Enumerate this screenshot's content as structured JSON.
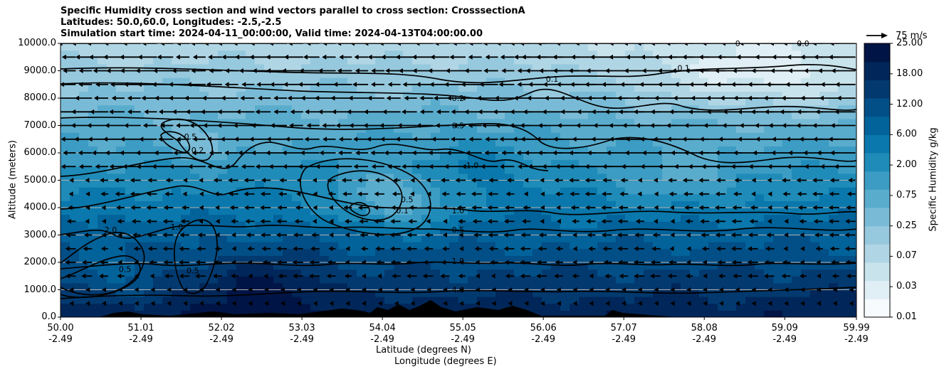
{
  "chart_data": {
    "type": "heatmap",
    "title_lines": [
      "Specific Humidity cross section and wind vectors parallel to cross section: CrosssectionA",
      "Latitudes: 50.0,60.0, Longitudes: -2.5,-2.5",
      "Simulation start time: 2024-04-11_00:00:00, Valid time: 2024-04-13T04:00:00.00"
    ],
    "ylabel": "Altitude (meters)",
    "xlabel_lines": [
      "Latitude (degrees N)",
      "Longitude (degrees E)"
    ],
    "y_ticks": [
      "0.0",
      "1000.0",
      "2000.0",
      "3000.0",
      "4000.0",
      "5000.0",
      "6000.0",
      "7000.0",
      "8000.0",
      "9000.0",
      "10000.0"
    ],
    "ylim": [
      0,
      10000
    ],
    "x_ticks": [
      {
        "lat": "50.00",
        "lon": "-2.49"
      },
      {
        "lat": "51.01",
        "lon": "-2.49"
      },
      {
        "lat": "52.02",
        "lon": "-2.49"
      },
      {
        "lat": "53.03",
        "lon": "-2.49"
      },
      {
        "lat": "54.04",
        "lon": "-2.49"
      },
      {
        "lat": "55.05",
        "lon": "-2.49"
      },
      {
        "lat": "56.06",
        "lon": "-2.49"
      },
      {
        "lat": "57.07",
        "lon": "-2.49"
      },
      {
        "lat": "58.08",
        "lon": "-2.49"
      },
      {
        "lat": "59.09",
        "lon": "-2.49"
      },
      {
        "lat": "59.99",
        "lon": "-2.49"
      }
    ],
    "xlim": [
      50.0,
      59.99
    ],
    "grid": "horizontal",
    "colorbar": {
      "label": "Specific Humidity g/kg",
      "ticks": [
        "0.01",
        "0.03",
        "0.07",
        "0.25",
        "0.75",
        "2.00",
        "6.00",
        "12.00",
        "18.00",
        "25.00"
      ],
      "colormap": [
        "#f7fbfd",
        "#e0eff5",
        "#c9e3ec",
        "#b0d6e5",
        "#96c9de",
        "#79bbd6",
        "#5aaccd",
        "#3c9cc3",
        "#1f8bb8",
        "#0a78ac",
        "#02629a",
        "#024e86",
        "#023a70",
        "#012659",
        "#011446"
      ]
    },
    "quiver_key": "75 m/s",
    "contour_labels": [
      {
        "text": "0.2",
        "lat": 54.99,
        "alt": 8000
      },
      {
        "text": "0.5",
        "lat": 54.99,
        "alt": 7000
      },
      {
        "text": "1.0",
        "lat": 55.17,
        "alt": 5550
      },
      {
        "text": "0.1",
        "lat": 56.17,
        "alt": 8700
      },
      {
        "text": "0.1",
        "lat": 57.82,
        "alt": 9100
      },
      {
        "text": "0.0",
        "lat": 59.32,
        "alt": 10000
      },
      {
        "text": "0",
        "lat": 58.5,
        "alt": 10000
      },
      {
        "text": "0.5",
        "lat": 51.63,
        "alt": 6600
      },
      {
        "text": "0.2",
        "lat": 51.72,
        "alt": 6100
      },
      {
        "text": "0.1",
        "lat": 54.29,
        "alt": 3900
      },
      {
        "text": "0.5",
        "lat": 54.35,
        "alt": 4300
      },
      {
        "text": "1.0",
        "lat": 54.99,
        "alt": 3900
      },
      {
        "text": "0.5",
        "lat": 54.99,
        "alt": 3200
      },
      {
        "text": "1.0",
        "lat": 54.99,
        "alt": 2050
      },
      {
        "text": "4.0",
        "lat": 54.99,
        "alt": 1000
      },
      {
        "text": "2.0",
        "lat": 50.63,
        "alt": 3200
      },
      {
        "text": "1.0",
        "lat": 51.46,
        "alt": 3300
      },
      {
        "text": "0.5",
        "lat": 50.81,
        "alt": 1750
      },
      {
        "text": "0.5",
        "lat": 51.66,
        "alt": 1700
      }
    ],
    "wind": {
      "direction": "southward (toward 50.00)",
      "typical_speed_ms_upper": 20,
      "typical_speed_ms_lower": 8
    }
  }
}
